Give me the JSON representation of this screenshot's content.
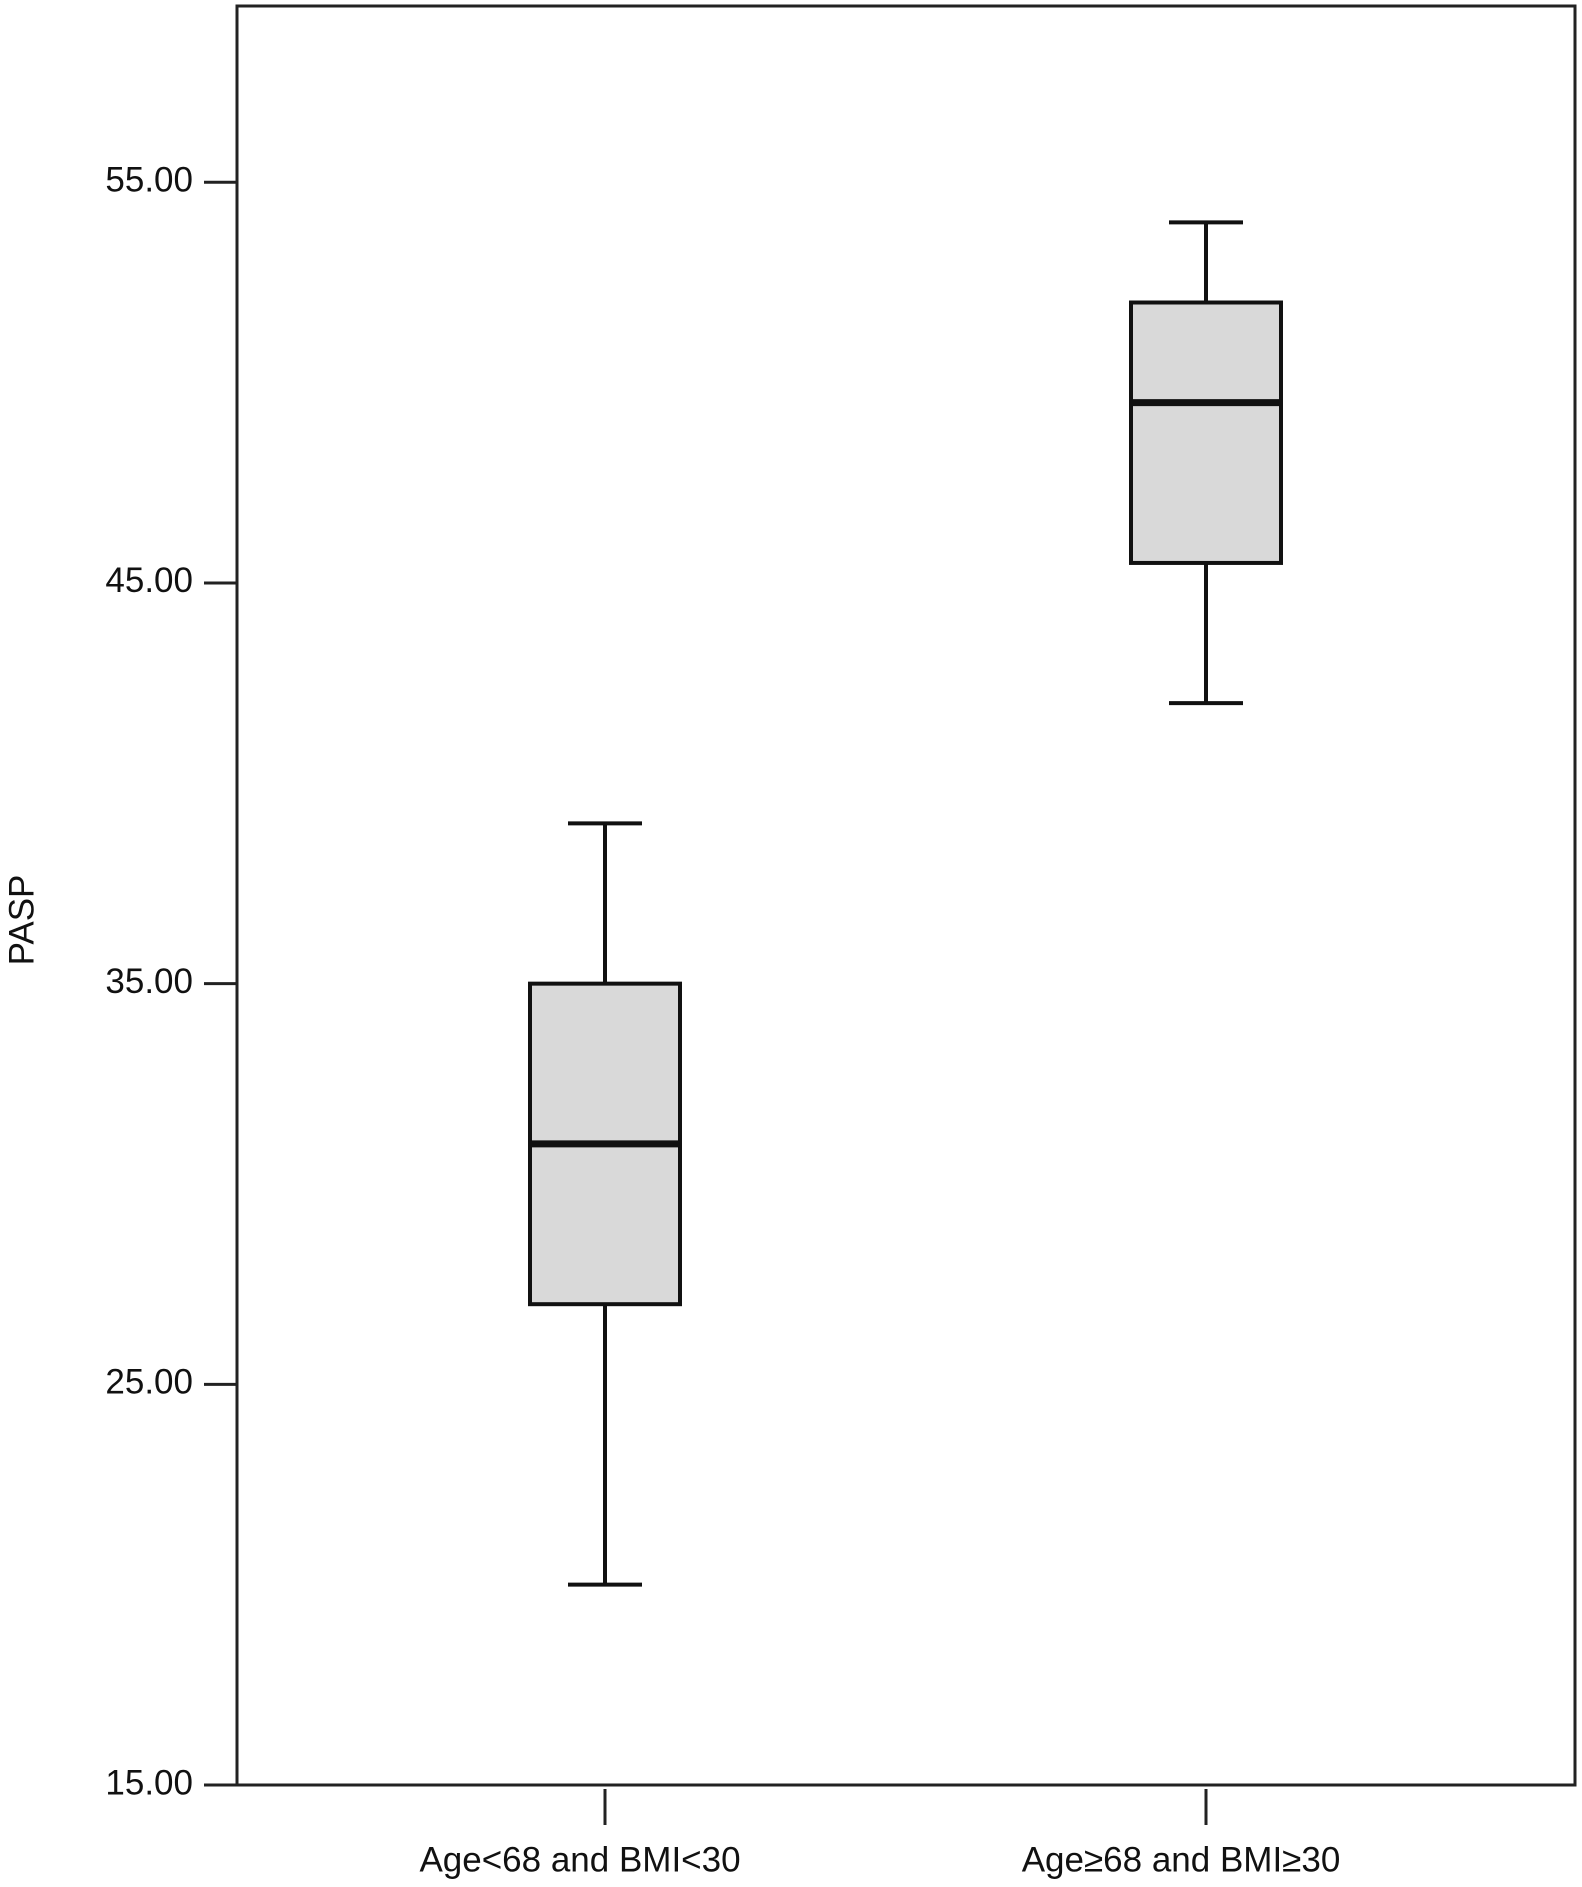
{
  "chart_data": {
    "type": "box",
    "y_label": "PASP",
    "categories": [
      "Age<68 and BMI<30",
      "Age≥68 and BMI≥30"
    ],
    "boxes": [
      {
        "min": 20,
        "q1": 27,
        "median": 31,
        "q3": 35,
        "max": 39
      },
      {
        "min": 42,
        "q1": 45.5,
        "median": 49.5,
        "q3": 52,
        "max": 54
      }
    ],
    "color": "#d9d9d9",
    "ylim": [
      15,
      59.4
    ],
    "yticks": [
      {
        "value": 15,
        "label": "15.00"
      },
      {
        "value": 25,
        "label": "25.00"
      },
      {
        "value": 35,
        "label": "35.00"
      },
      {
        "value": 45,
        "label": "45.00"
      },
      {
        "value": 55,
        "label": "55.00"
      }
    ]
  }
}
